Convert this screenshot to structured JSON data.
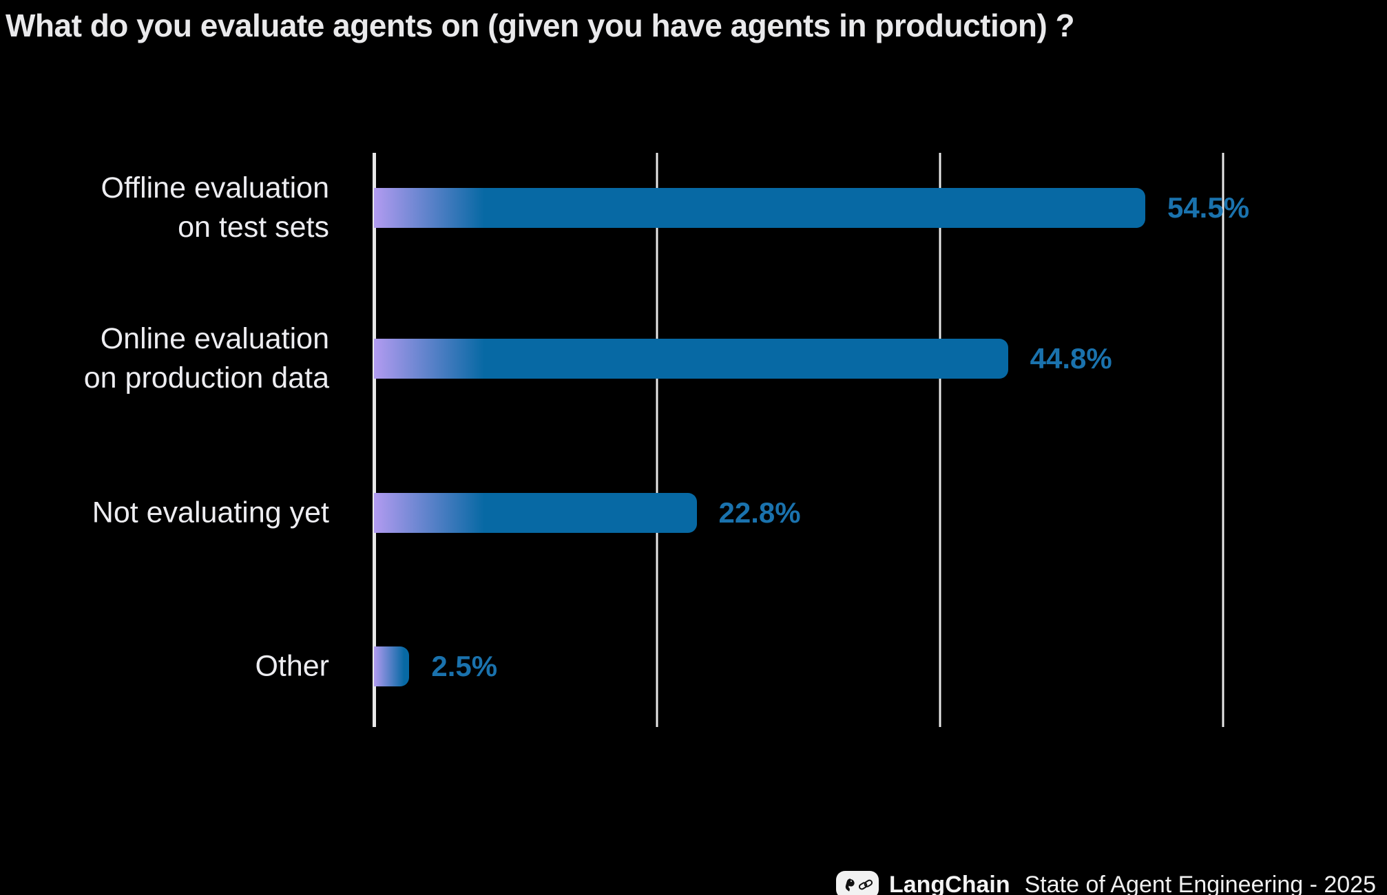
{
  "title": "What do you evaluate agents on (given you have agents in production) ?",
  "chart_data": {
    "type": "bar",
    "orientation": "horizontal",
    "title": "What do you evaluate agents on (given you have agents in production) ?",
    "categories": [
      "Offline evaluation on test sets",
      "Online evaluation on production data",
      "Not evaluating yet",
      "Other"
    ],
    "category_lines": [
      [
        "Offline evaluation",
        "on test sets"
      ],
      [
        "Online evaluation",
        "on production data"
      ],
      [
        "Not evaluating yet"
      ],
      [
        "Other"
      ]
    ],
    "values": [
      54.5,
      44.8,
      22.8,
      2.5
    ],
    "value_labels": [
      "54.5%",
      "44.8%",
      "22.8%",
      "2.5%"
    ],
    "xlabel": "",
    "ylabel": "",
    "xlim": [
      0,
      60
    ],
    "gridlines_x": [
      20,
      40,
      60
    ],
    "grid": "vertical-only",
    "legend": "none"
  },
  "footer": {
    "brand": "LangChain",
    "caption": "State of Agent Engineering - 2025",
    "logo": "parrot-and-chain-link-icon"
  },
  "colors": {
    "background": "#000000",
    "title_text": "#e9e9eb",
    "category_text": "#ededf1",
    "axis_and_grid": "#e8e8e8",
    "bar_blue": "#0769a4",
    "bar_gradient_start": "#b29bf0",
    "value_text": "#1a72ad",
    "footer_pill": "#f2f2f2"
  }
}
